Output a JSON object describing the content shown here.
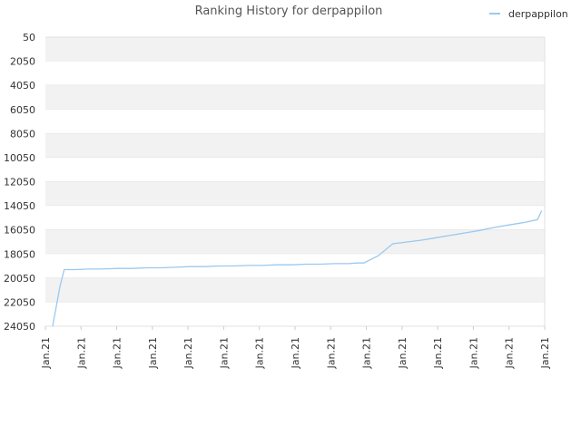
{
  "chart_data": {
    "type": "line",
    "title": "Ranking History for derpappilon",
    "xlabel": "",
    "ylabel": "",
    "y_inverted": true,
    "ylim": [
      50,
      24050
    ],
    "y_ticks": [
      "50",
      "2050",
      "4050",
      "6050",
      "8050",
      "10050",
      "12050",
      "14050",
      "16050",
      "18050",
      "20050",
      "22050",
      "24050"
    ],
    "x_tick_labels": [
      "Jan.21",
      "Jan.21",
      "Jan.21",
      "Jan.21",
      "Jan.21",
      "Jan.21",
      "Jan.21",
      "Jan.21",
      "Jan.21",
      "Jan.21",
      "Jan.21",
      "Jan.21",
      "Jan.21",
      "Jan.21",
      "Jan.21"
    ],
    "legend": {
      "position": "top-right"
    },
    "band_colors": [
      "#f2f2f2",
      "#ffffff"
    ],
    "grid": true,
    "series": [
      {
        "name": "derpappilon",
        "color": "#99c9ef",
        "x": [
          0.5,
          1.0,
          1.3,
          2.0,
          3.0,
          3.8,
          5.0,
          6.0,
          7.0,
          8.0,
          9.0,
          10.0,
          11.0,
          12.0,
          13.0,
          14.0,
          15.0,
          16.0,
          17.0,
          18.0,
          19.0,
          20.0,
          21.0,
          21.5,
          22.0,
          23.0,
          24.0,
          25.0,
          26.0,
          27.0,
          28.0,
          29.0,
          30.0,
          31.0,
          32.0,
          33.0,
          34.0,
          34.3
        ],
        "y": [
          24050,
          20800,
          19350,
          19350,
          19300,
          19300,
          19250,
          19250,
          19200,
          19200,
          19150,
          19100,
          19100,
          19050,
          19050,
          19000,
          19000,
          18950,
          18950,
          18900,
          18900,
          18850,
          18850,
          18800,
          18800,
          18200,
          17200,
          17050,
          16900,
          16700,
          16500,
          16300,
          16100,
          15850,
          15650,
          15450,
          15200,
          14450
        ]
      }
    ],
    "xlim": [
      0,
      34.5
    ]
  }
}
